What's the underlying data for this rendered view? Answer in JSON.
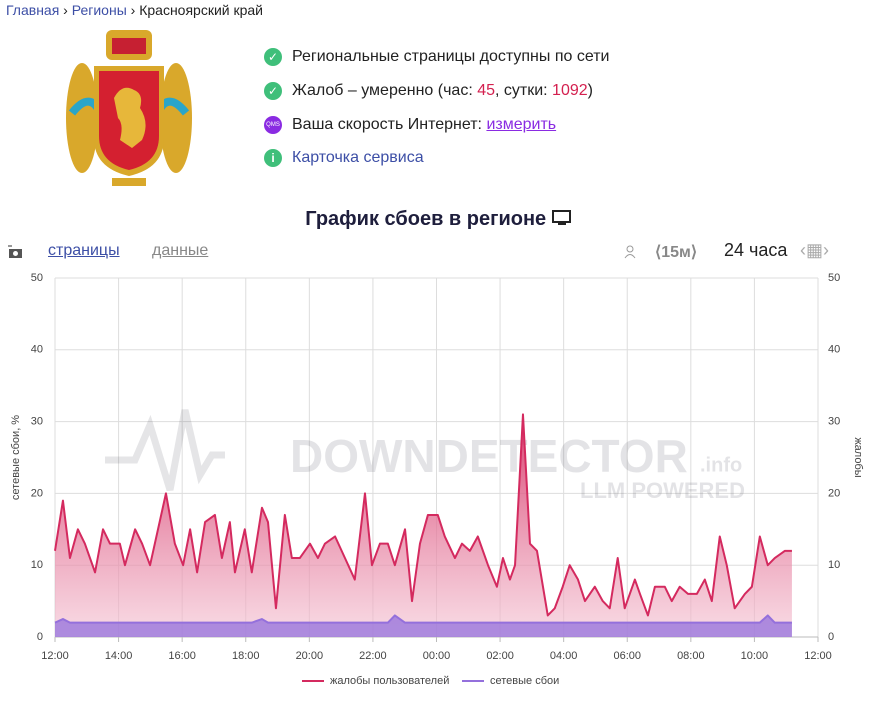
{
  "breadcrumb": [
    "Главная",
    "Регионы",
    "Красноярский край"
  ],
  "status": {
    "network": "Региональные страницы доступны по сети",
    "complaints": {
      "label": "Жалоб – умеренно (час: ",
      "hour": 45,
      "day_label": ", сутки: ",
      "day": 1092,
      "close": ")"
    },
    "speed": {
      "icon": "QMS",
      "label": "Ваша скорость Интернет: ",
      "link": "измерить"
    },
    "card": {
      "icon": "i",
      "label": "Карточка сервиса"
    }
  },
  "section_title": "График сбоев в регионе",
  "tabs": {
    "pages": "страницы",
    "data": "данные",
    "interval": "⟨15м⟩",
    "period": "24 часа"
  },
  "watermark": {
    "brand": "DOWNDETECTOR",
    "suffix": ".info",
    "tagline": "LLM POWERED"
  },
  "chart_data": {
    "type": "area",
    "x": [
      0,
      0.25,
      0.47,
      0.72,
      0.94,
      1.26,
      1.51,
      1.73,
      2.04,
      2.2,
      2.52,
      2.74,
      2.99,
      3.49,
      3.77,
      4.03,
      4.25,
      4.47,
      4.72,
      5.03,
      5.25,
      5.5,
      5.66,
      5.97,
      6.19,
      6.51,
      6.7,
      6.95,
      7.23,
      7.45,
      7.7,
      8.02,
      8.27,
      8.49,
      8.81,
      9.12,
      9.43,
      9.75,
      9.97,
      10.22,
      10.47,
      10.69,
      11.01,
      11.23,
      11.48,
      11.73,
      12.04,
      12.26,
      12.58,
      12.8,
      13.05,
      13.3,
      13.62,
      13.9,
      14.09,
      14.31,
      14.47,
      14.72,
      14.94,
      15.16,
      15.5,
      15.72,
      15.97,
      16.19,
      16.45,
      16.67,
      16.98,
      17.23,
      17.45,
      17.7,
      17.92,
      18.24,
      18.4,
      18.65,
      18.87,
      19.18,
      19.4,
      19.65,
      19.91,
      20.19,
      20.44,
      20.66,
      20.91,
      21.13,
      21.38,
      21.7,
      21.92,
      22.17,
      22.42,
      22.64,
      22.96,
      23.18
    ],
    "series": [
      {
        "name": "жалобы пользователей",
        "color": "#d42a5f",
        "axis": "y2",
        "values": [
          12,
          19,
          11,
          15,
          13,
          9,
          15,
          13,
          13,
          10,
          15,
          13,
          10,
          20,
          13,
          10,
          15,
          9,
          16,
          17,
          11,
          16,
          9,
          15,
          9,
          18,
          16,
          4,
          17,
          11,
          11,
          13,
          11,
          13,
          14,
          11,
          8,
          20,
          10,
          13,
          13,
          10,
          15,
          5,
          13,
          17,
          17,
          14,
          11,
          13,
          12,
          14,
          10,
          7,
          11,
          8,
          10,
          31,
          13,
          12,
          3,
          4,
          7,
          10,
          8,
          5,
          7,
          5,
          4,
          11,
          4,
          8,
          6,
          3,
          7,
          7,
          5,
          7,
          6,
          6,
          8,
          5,
          14,
          10,
          4,
          6,
          7,
          14,
          10,
          11,
          12,
          12
        ]
      },
      {
        "name": "сетевые сбои",
        "color": "#9470dc",
        "values": [
          2,
          2.5,
          2,
          2,
          2,
          2,
          2,
          2,
          2,
          2,
          2,
          2,
          2,
          2,
          2,
          2,
          2,
          2,
          2,
          2,
          2,
          2,
          2,
          2,
          2,
          2.5,
          2,
          2,
          2,
          2,
          2,
          2,
          2,
          2,
          2,
          2,
          2,
          2,
          2,
          2,
          2,
          3,
          2,
          2,
          2,
          2,
          2,
          2,
          2,
          2,
          2,
          2,
          2,
          2,
          2,
          2,
          2,
          2,
          2,
          2,
          2,
          2,
          2,
          2,
          2,
          2,
          2,
          2,
          2,
          2,
          2,
          2,
          2,
          2,
          2,
          2,
          2,
          2,
          2,
          2,
          2,
          2,
          2,
          2,
          2,
          2,
          2,
          2,
          3,
          2,
          2,
          2
        ]
      }
    ],
    "xlim": [
      0,
      24
    ],
    "xticks": [
      {
        "value": 0,
        "label": "12:00"
      },
      {
        "value": 2,
        "label": "14:00"
      },
      {
        "value": 4,
        "label": "16:00"
      },
      {
        "value": 6,
        "label": "18:00"
      },
      {
        "value": 8,
        "label": "20:00"
      },
      {
        "value": 10,
        "label": "22:00"
      },
      {
        "value": 12,
        "label": "00:00"
      },
      {
        "value": 14,
        "label": "02:00"
      },
      {
        "value": 16,
        "label": "04:00"
      },
      {
        "value": 18,
        "label": "06:00"
      },
      {
        "value": 20,
        "label": "08:00"
      },
      {
        "value": 22,
        "label": "10:00"
      },
      {
        "value": 24,
        "label": "12:00"
      }
    ],
    "ylim": [
      0,
      50
    ],
    "yticks": [
      0,
      10,
      20,
      30,
      40,
      50
    ],
    "ylabel": "сетевые сбои, %",
    "y2lim": [
      0,
      50
    ],
    "y2ticks": [
      0,
      10,
      20,
      30,
      40,
      50
    ],
    "y2label": "жалобы",
    "grid": true,
    "legend": "bottom"
  }
}
